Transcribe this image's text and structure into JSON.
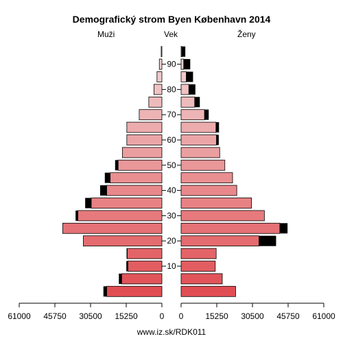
{
  "chart_data": {
    "type": "bar",
    "title": "Demografický strom Byen København 2014",
    "left_label": "Muži",
    "center_label": "Vek",
    "right_label": "Ženy",
    "footer": "www.iz.sk/RDK011",
    "age_tick_labels": [
      "10",
      "20",
      "30",
      "40",
      "50",
      "60",
      "70",
      "80",
      "90"
    ],
    "x_tick_labels_left": [
      "61000",
      "45750",
      "30500",
      "15250",
      "0"
    ],
    "x_tick_labels_right": [
      "0",
      "15250",
      "30500",
      "45750",
      "61000"
    ],
    "x_range": [
      0,
      61000
    ],
    "age_groups": [
      "0-4",
      "5-9",
      "10-14",
      "15-19",
      "20-24",
      "25-29",
      "30-34",
      "35-39",
      "40-44",
      "45-49",
      "50-54",
      "55-59",
      "60-64",
      "65-69",
      "70-74",
      "75-79",
      "80-84",
      "85-89",
      "90-94",
      "95+"
    ],
    "series": [
      {
        "name": "Muži",
        "values": [
          23600,
          17200,
          14500,
          14800,
          33600,
          42400,
          35900,
          30200,
          23600,
          22100,
          18700,
          16900,
          15000,
          15000,
          9700,
          5600,
          3400,
          2100,
          1100,
          300
        ]
      },
      {
        "name": "Muži (čierna časť)",
        "values": [
          1400,
          1200,
          700,
          300,
          0,
          0,
          1000,
          2600,
          2800,
          2300,
          1300,
          0,
          0,
          0,
          0,
          0,
          0,
          0,
          0,
          0
        ]
      },
      {
        "name": "Ženy",
        "values": [
          23300,
          17600,
          14600,
          15000,
          33300,
          42200,
          35600,
          30100,
          23800,
          22000,
          18700,
          16500,
          15100,
          14900,
          10000,
          5800,
          3300,
          2200,
          1100,
          300
        ]
      },
      {
        "name": "Ženy (čierna časť)",
        "values": [
          0,
          0,
          0,
          0,
          7300,
          3300,
          0,
          0,
          0,
          0,
          0,
          0,
          1000,
          1300,
          1800,
          2200,
          2800,
          2900,
          2800,
          1500
        ]
      }
    ],
    "colors": {
      "low_age": "#e04e53",
      "high_age": "#f2d8d8",
      "black": "#000000",
      "outline": "#000000"
    },
    "grid": false
  }
}
